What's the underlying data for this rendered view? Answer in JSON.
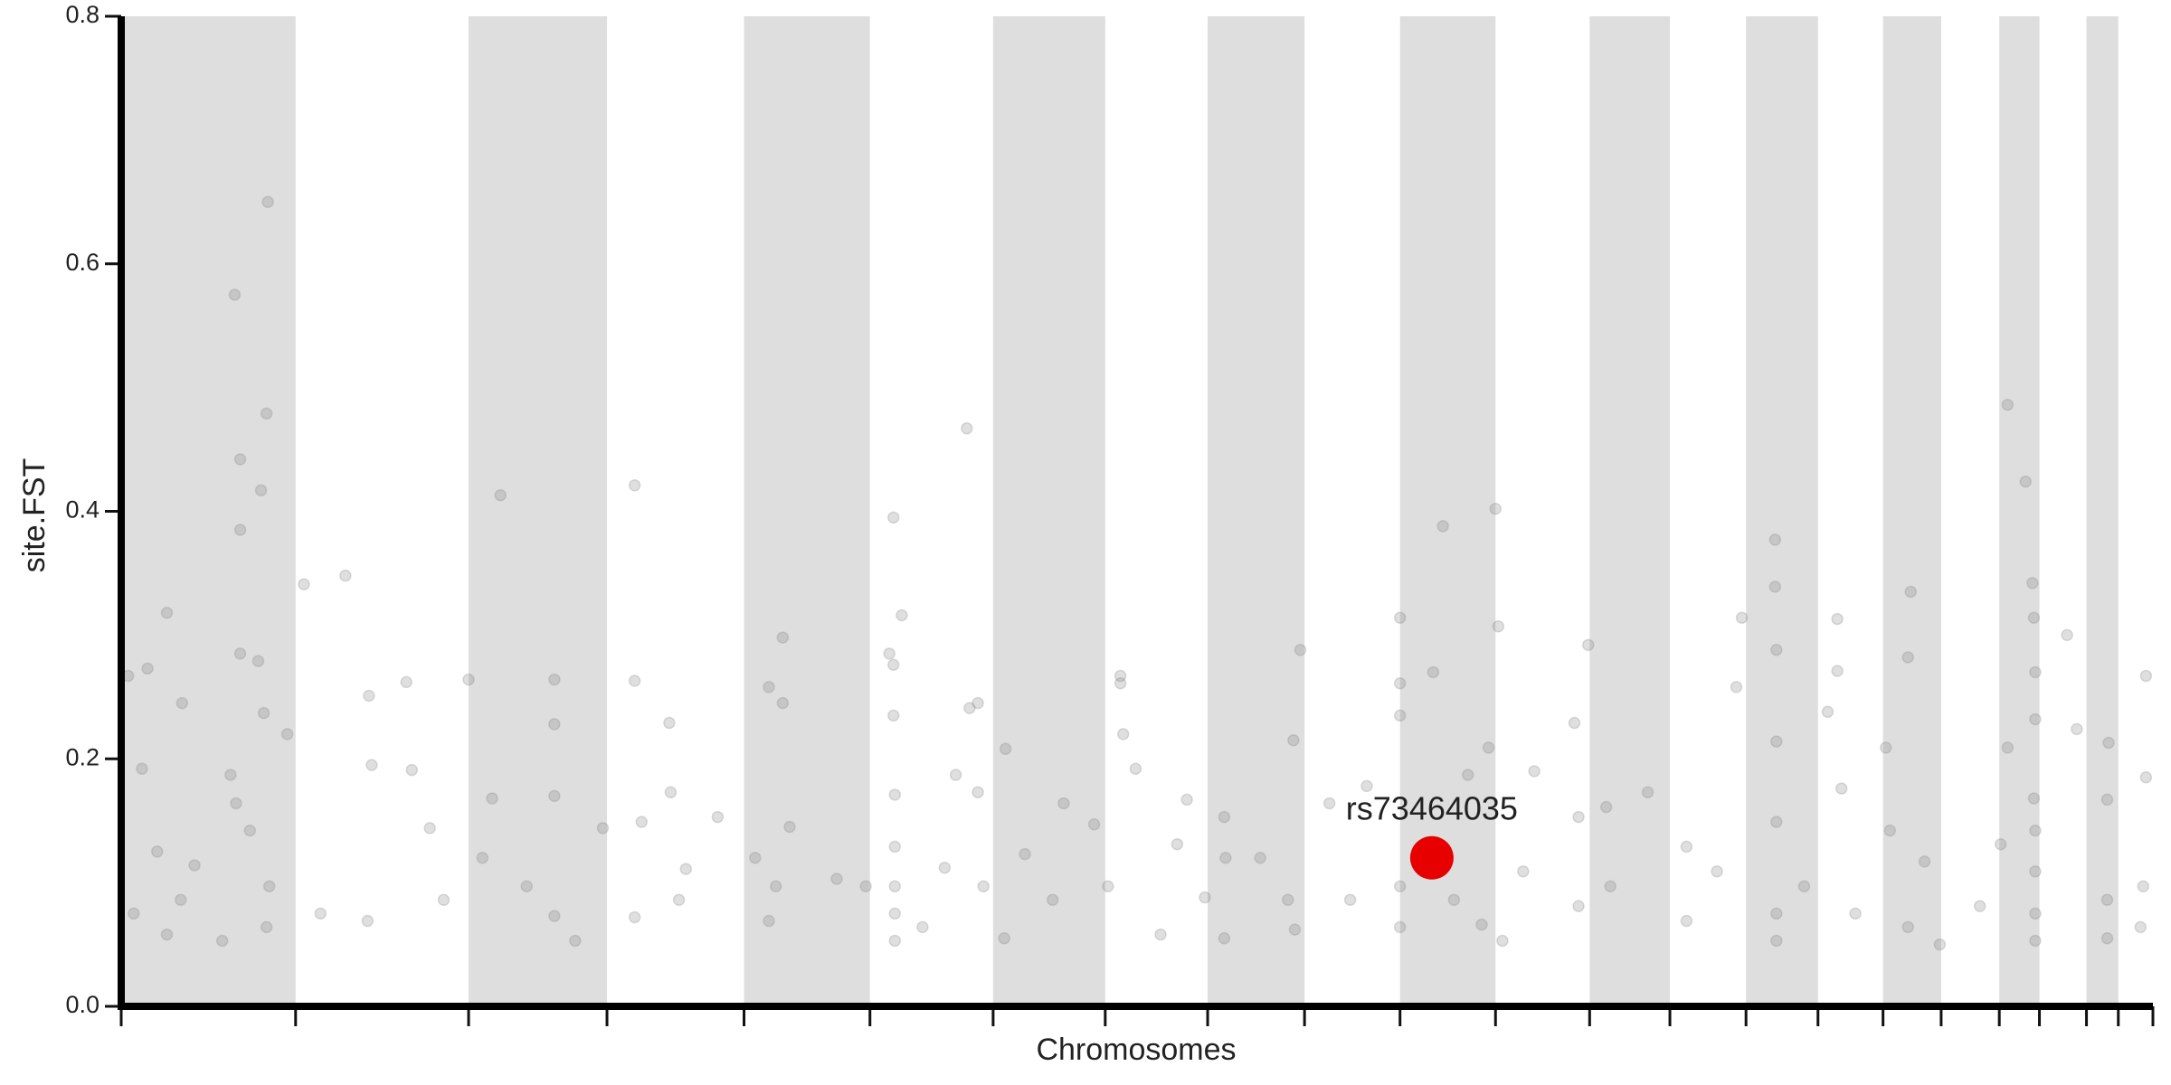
{
  "chart_data": {
    "type": "scatter",
    "xlabel": "Chromosomes",
    "ylabel": "site.FST",
    "xlim": [
      0,
      2936
    ],
    "ylim": [
      0,
      0.8
    ],
    "yticks": [
      {
        "value": 0,
        "label": "0.0"
      },
      0.2,
      0.4,
      0.6,
      0.8
    ],
    "chromosome_boundaries": [
      0,
      252,
      502,
      702,
      900,
      1082,
      1260,
      1422,
      1570,
      1710,
      1848,
      1986,
      2122,
      2238,
      2348,
      2452,
      2546,
      2630,
      2714,
      2772,
      2840,
      2886,
      2936
    ],
    "band_color": "#dedede",
    "color": "#808080",
    "opacity": 0.25,
    "x": [
      212,
      164,
      210,
      172,
      202,
      172,
      66,
      172,
      198,
      10,
      38,
      206,
      88,
      240,
      30,
      158,
      166,
      186,
      52,
      106,
      214,
      86,
      18,
      210,
      146,
      66,
      264,
      324,
      358,
      412,
      362,
      420,
      446,
      356,
      466,
      288,
      502,
      548,
      536,
      626,
      626,
      626,
      522,
      586,
      626,
      696,
      656,
      742,
      742,
      792,
      794,
      752,
      816,
      742,
      862,
      806,
      956,
      936,
      956,
      966,
      916,
      946,
      936,
      1116,
      1128,
      1110,
      1116,
      1116,
      1118,
      1118,
      1118,
      1118,
      1118,
      1034,
      1222,
      1226,
      1238,
      1238,
      1206,
      1190,
      1246,
      1158,
      1278,
      1306,
      1362,
      1406,
      1346,
      1276,
      1444,
      1444,
      1448,
      1466,
      1426,
      1540,
      1502,
      1594,
      1596,
      1566,
      1594,
      1694,
      1704,
      1686,
      1696,
      1646,
      1746,
      1800,
      1776,
      1848,
      1848,
      1848,
      1848,
      1848,
      1896,
      1910,
      1986,
      1990,
      1946,
      1976,
      1926,
      1966,
      1996,
      2042,
      2120,
      2100,
      2106,
      2106,
      2146,
      2152,
      2206,
      2262,
      2262,
      2342,
      2334,
      2390,
      2390,
      2392,
      2392,
      2392,
      2392,
      2392,
      2480,
      2480,
      2466,
      2486,
      2432,
      2506,
      2586,
      2582,
      2550,
      2556,
      2606,
      2582,
      2628,
      2726,
      2752,
      2762,
      2764,
      2766,
      2766,
      2764,
      2766,
      2766,
      2766,
      2766,
      2726,
      2716,
      2812,
      2826,
      2872,
      2870,
      2870,
      2870,
      2926,
      2926,
      2922,
      2918,
      2686,
      2306,
      2026,
      1526,
      1076
    ],
    "values": [
      0.65,
      0.575,
      0.479,
      0.442,
      0.417,
      0.385,
      0.318,
      0.285,
      0.279,
      0.267,
      0.273,
      0.237,
      0.245,
      0.22,
      0.192,
      0.187,
      0.164,
      0.142,
      0.125,
      0.114,
      0.097,
      0.086,
      0.075,
      0.064,
      0.053,
      0.058,
      0.341,
      0.348,
      0.251,
      0.262,
      0.195,
      0.191,
      0.144,
      0.069,
      0.086,
      0.075,
      0.264,
      0.413,
      0.168,
      0.264,
      0.228,
      0.17,
      0.12,
      0.097,
      0.073,
      0.144,
      0.053,
      0.421,
      0.263,
      0.229,
      0.173,
      0.149,
      0.111,
      0.072,
      0.153,
      0.086,
      0.298,
      0.258,
      0.245,
      0.145,
      0.12,
      0.097,
      0.069,
      0.395,
      0.316,
      0.285,
      0.276,
      0.235,
      0.171,
      0.129,
      0.097,
      0.075,
      0.053,
      0.103,
      0.467,
      0.241,
      0.245,
      0.173,
      0.187,
      0.112,
      0.097,
      0.064,
      0.208,
      0.123,
      0.164,
      0.147,
      0.086,
      0.055,
      0.267,
      0.261,
      0.22,
      0.192,
      0.097,
      0.167,
      0.058,
      0.153,
      0.12,
      0.088,
      0.055,
      0.215,
      0.288,
      0.086,
      0.062,
      0.12,
      0.164,
      0.178,
      0.086,
      0.314,
      0.261,
      0.235,
      0.097,
      0.064,
      0.27,
      0.388,
      0.402,
      0.307,
      0.187,
      0.209,
      0.086,
      0.066,
      0.053,
      0.19,
      0.292,
      0.229,
      0.153,
      0.081,
      0.161,
      0.097,
      0.173,
      0.129,
      0.069,
      0.314,
      0.258,
      0.377,
      0.339,
      0.288,
      0.214,
      0.149,
      0.075,
      0.053,
      0.313,
      0.271,
      0.238,
      0.176,
      0.097,
      0.075,
      0.335,
      0.282,
      0.209,
      0.142,
      0.117,
      0.064,
      0.05,
      0.486,
      0.424,
      0.342,
      0.314,
      0.27,
      0.232,
      0.168,
      0.142,
      0.109,
      0.075,
      0.053,
      0.209,
      0.131,
      0.3,
      0.224,
      0.213,
      0.167,
      0.086,
      0.055,
      0.267,
      0.185,
      0.097,
      0.064,
      0.081,
      0.109,
      0.109,
      0.131,
      0.097
    ],
    "highlight": {
      "label": "rs73464035",
      "x": 1894,
      "y": 0.12,
      "color": "#e60000"
    }
  }
}
